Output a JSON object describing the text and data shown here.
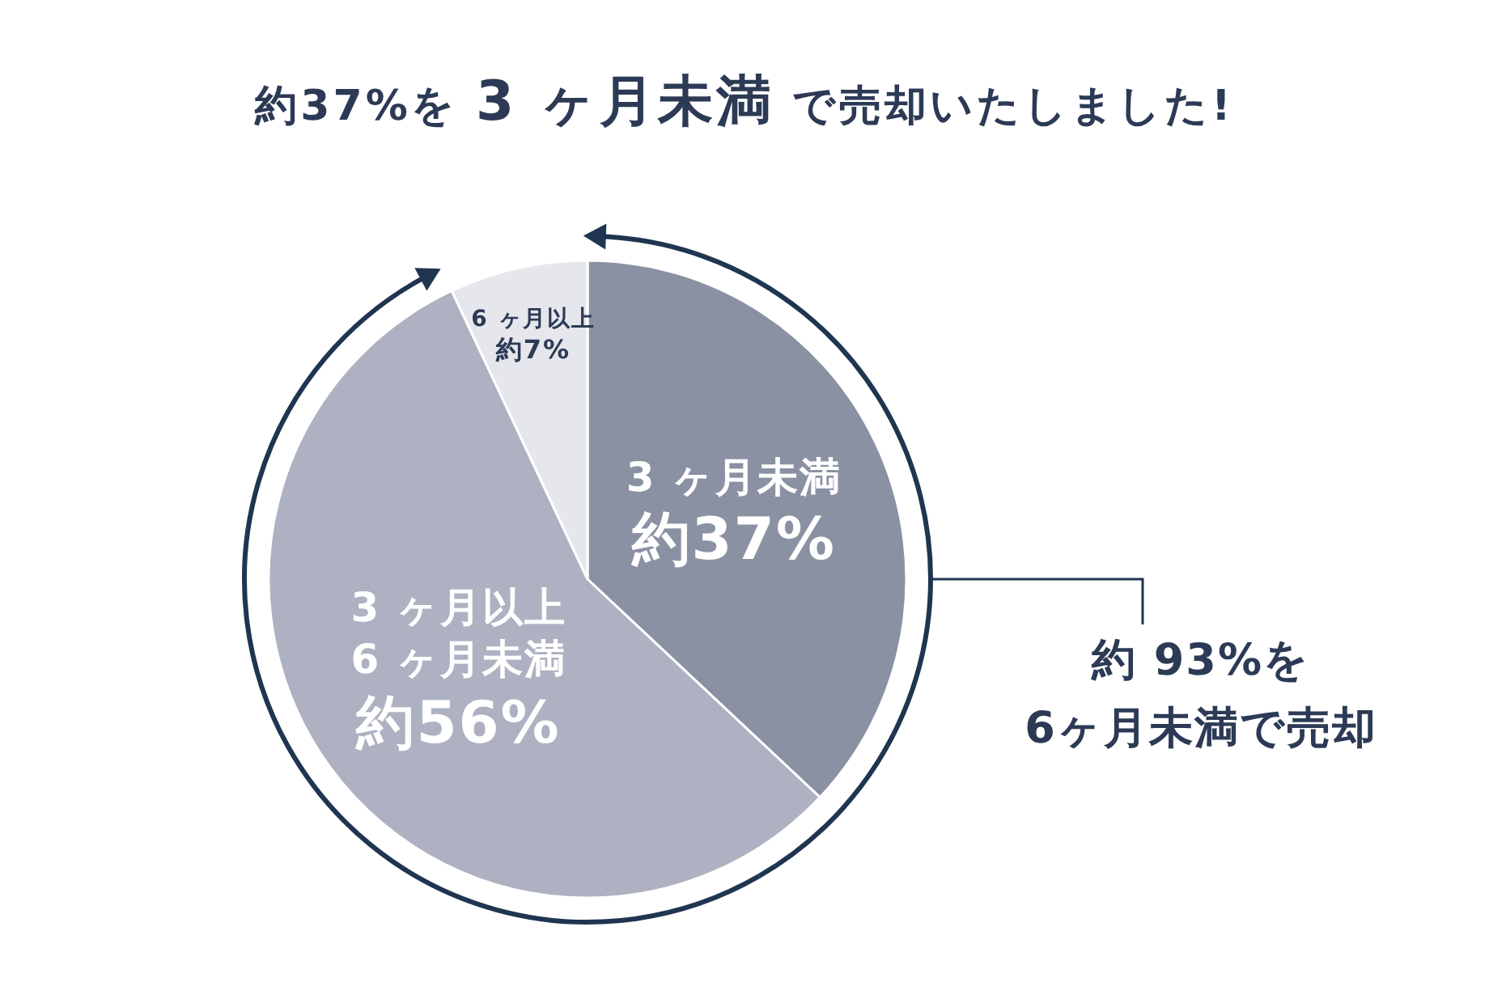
{
  "chart_data": {
    "type": "pie",
    "title": "約37%を **3 ヶ月未満** で売却いたしました!",
    "categories": [
      "3 ヶ月未満",
      "3 ヶ月以上 6 ヶ月未満",
      "6 ヶ月以上"
    ],
    "values": [
      37,
      56,
      7
    ],
    "value_labels": [
      "約37%",
      "約56%",
      "約7%"
    ],
    "colors": [
      "#8a91a3",
      "#adb1c1",
      "#e6e7ec"
    ],
    "annotations": [
      "約 93%を 6ヶ月未満で売却"
    ]
  }
}
